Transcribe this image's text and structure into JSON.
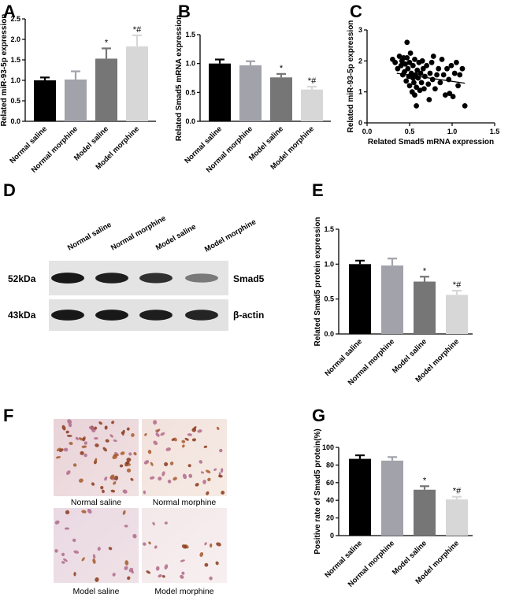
{
  "panels": {
    "A": "A",
    "B": "B",
    "C": "C",
    "D": "D",
    "E": "E",
    "F": "F",
    "G": "G"
  },
  "colors": {
    "normal_saline": "#000000",
    "normal_morphine": "#a2a2ab",
    "model_saline": "#767676",
    "model_morphine": "#d7d7d7"
  },
  "chart_data": [
    {
      "panel": "A",
      "type": "bar",
      "categories": [
        "Normal saline",
        "Normal morphine",
        "Model saline",
        "Model morphine"
      ],
      "values": [
        1.0,
        1.02,
        1.53,
        1.83
      ],
      "errors": [
        0.07,
        0.2,
        0.25,
        0.27
      ],
      "significance": [
        "",
        "",
        "*",
        "*#"
      ],
      "ylabel": "Related miR-93-5p expression",
      "ylim": [
        0,
        2.5
      ],
      "yticks": [
        "0.0",
        "0.5",
        "1.0",
        "1.5",
        "2.0",
        "2.5"
      ]
    },
    {
      "panel": "B",
      "type": "bar",
      "categories": [
        "Normal saline",
        "Normal morphine",
        "Model saline",
        "Model morphine"
      ],
      "values": [
        1.0,
        0.97,
        0.76,
        0.55
      ],
      "errors": [
        0.07,
        0.07,
        0.06,
        0.05
      ],
      "significance": [
        "",
        "",
        "*",
        "*#"
      ],
      "ylabel": "Related Smad5 mRNA expression",
      "ylim": [
        0,
        1.5
      ],
      "yticks": [
        "0.0",
        "0.5",
        "1.0",
        "1.5"
      ]
    },
    {
      "panel": "C",
      "type": "scatter",
      "xlabel": "Related Smad5 mRNA expression",
      "ylabel": "Related miR-93-5p expression",
      "xlim": [
        0,
        1.5
      ],
      "ylim": [
        0,
        3
      ],
      "xticks": [
        "0.0",
        "0.5",
        "1.0",
        "1.5"
      ],
      "yticks": [
        "0",
        "1",
        "2",
        "3"
      ],
      "trend": [
        [
          0.35,
          1.6
        ],
        [
          1.15,
          1.28
        ]
      ],
      "points": [
        [
          0.3,
          2.05
        ],
        [
          0.33,
          1.95
        ],
        [
          0.36,
          1.75
        ],
        [
          0.38,
          2.15
        ],
        [
          0.4,
          1.85
        ],
        [
          0.41,
          2.0
        ],
        [
          0.42,
          1.55
        ],
        [
          0.43,
          2.1
        ],
        [
          0.44,
          1.65
        ],
        [
          0.45,
          1.9
        ],
        [
          0.46,
          1.35
        ],
        [
          0.47,
          2.6
        ],
        [
          0.47,
          2.1
        ],
        [
          0.48,
          1.75
        ],
        [
          0.49,
          1.5
        ],
        [
          0.5,
          1.2
        ],
        [
          0.5,
          1.95
        ],
        [
          0.51,
          2.25
        ],
        [
          0.52,
          1.6
        ],
        [
          0.53,
          1.0
        ],
        [
          0.54,
          1.45
        ],
        [
          0.54,
          1.85
        ],
        [
          0.55,
          1.3
        ],
        [
          0.56,
          0.9
        ],
        [
          0.56,
          2.05
        ],
        [
          0.57,
          1.55
        ],
        [
          0.58,
          0.55
        ],
        [
          0.58,
          1.15
        ],
        [
          0.59,
          1.7
        ],
        [
          0.6,
          1.45
        ],
        [
          0.61,
          1.95
        ],
        [
          0.62,
          1.05
        ],
        [
          0.63,
          1.6
        ],
        [
          0.64,
          1.3
        ],
        [
          0.65,
          2.0
        ],
        [
          0.66,
          1.75
        ],
        [
          0.67,
          1.1
        ],
        [
          0.68,
          1.5
        ],
        [
          0.7,
          1.85
        ],
        [
          0.72,
          1.25
        ],
        [
          0.73,
          0.75
        ],
        [
          0.74,
          1.6
        ],
        [
          0.76,
          1.95
        ],
        [
          0.77,
          1.4
        ],
        [
          0.78,
          2.15
        ],
        [
          0.8,
          1.1
        ],
        [
          0.82,
          1.55
        ],
        [
          0.84,
          1.75
        ],
        [
          0.86,
          1.3
        ],
        [
          0.88,
          2.05
        ],
        [
          0.9,
          1.55
        ],
        [
          0.92,
          0.9
        ],
        [
          0.94,
          1.75
        ],
        [
          0.96,
          1.4
        ],
        [
          0.97,
          0.95
        ],
        [
          0.99,
          1.85
        ],
        [
          1.01,
          0.85
        ],
        [
          1.03,
          1.6
        ],
        [
          1.05,
          1.95
        ],
        [
          1.07,
          1.2
        ],
        [
          1.09,
          1.55
        ],
        [
          1.12,
          1.75
        ],
        [
          1.15,
          0.55
        ]
      ]
    },
    {
      "panel": "E",
      "type": "bar",
      "categories": [
        "Normal saline",
        "Normal morphine",
        "Model saline",
        "Model morphine"
      ],
      "values": [
        1.0,
        0.98,
        0.75,
        0.56
      ],
      "errors": [
        0.05,
        0.1,
        0.07,
        0.06
      ],
      "significance": [
        "",
        "",
        "*",
        "*#"
      ],
      "ylabel": "Related Smad5 protein expression",
      "ylim": [
        0,
        1.5
      ],
      "yticks": [
        "0.0",
        "0.5",
        "1.0",
        "1.5"
      ]
    },
    {
      "panel": "G",
      "type": "bar",
      "categories": [
        "Normal saline",
        "Normal morphine",
        "Model saline",
        "Model morphine"
      ],
      "values": [
        87,
        85,
        52,
        41
      ],
      "errors": [
        4,
        4,
        4,
        3
      ],
      "significance": [
        "",
        "",
        "*",
        "*#"
      ],
      "ylabel": "Positive rate of Smad5 protein(%)",
      "ylim": [
        0,
        100
      ],
      "yticks": [
        "0",
        "20",
        "40",
        "60",
        "80",
        "100"
      ]
    }
  ],
  "western_blot": {
    "lanes": [
      "Normal saline",
      "Normal morphine",
      "Model saline",
      "Model morphine"
    ],
    "rows": [
      {
        "size": "52kDa",
        "protein": "Smad5",
        "intensity": [
          0.95,
          0.92,
          0.85,
          0.55
        ]
      },
      {
        "size": "43kDa",
        "protein": "β-actin",
        "intensity": [
          0.95,
          0.95,
          0.93,
          0.9
        ]
      }
    ]
  },
  "ihc": {
    "captions": [
      "Normal saline",
      "Normal morphine",
      "Model saline",
      "Model morphine"
    ],
    "density": [
      1.0,
      0.7,
      0.35,
      0.25
    ]
  }
}
